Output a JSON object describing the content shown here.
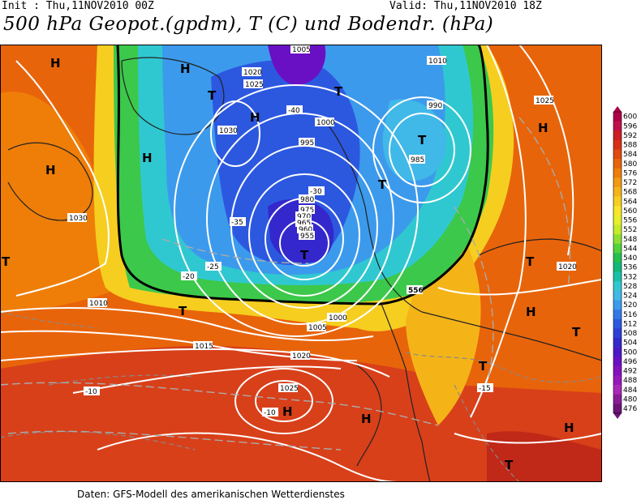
{
  "header": {
    "init": "Init : Thu,11NOV2010 00Z",
    "valid": "Valid: Thu,11NOV2010 18Z",
    "title": "500 hPa Geopot.(gpdm), T (C) und Bodendr. (hPa)"
  },
  "footer": "Daten: GFS-Modell des amerikanischen Wetterdienstes",
  "legend": {
    "levels": [
      "600",
      "596",
      "592",
      "588",
      "584",
      "580",
      "576",
      "572",
      "568",
      "564",
      "560",
      "556",
      "552",
      "548",
      "544",
      "540",
      "536",
      "532",
      "528",
      "524",
      "520",
      "516",
      "512",
      "508",
      "504",
      "500",
      "496",
      "492",
      "488",
      "484",
      "480",
      "476"
    ],
    "colors": [
      "#b0004a",
      "#c0104a",
      "#cc1e20",
      "#d83018",
      "#e04a10",
      "#e86408",
      "#ee7e08",
      "#f29a10",
      "#f4b418",
      "#f6ce20",
      "#f8e628",
      "#e6f028",
      "#c4ec28",
      "#8ee030",
      "#52d23c",
      "#22c050",
      "#10b87a",
      "#18c0a8",
      "#30c8d0",
      "#40b8e8",
      "#3c9aec",
      "#3478e8",
      "#2c58e0",
      "#2c40d8",
      "#3428cc",
      "#4c18c8",
      "#6a10c4",
      "#8410c0",
      "#9818bc",
      "#ac28b8",
      "#8a1c96",
      "#6c1478"
    ]
  },
  "map": {
    "pressure_labels": [
      "1000",
      "1005",
      "1010",
      "1015",
      "1020",
      "1025",
      "1030",
      "995",
      "990",
      "985",
      "980",
      "975",
      "970",
      "965",
      "960",
      "955"
    ],
    "temp_labels": [
      "-10",
      "-15",
      "-20",
      "-25",
      "-30",
      "-35",
      "-40"
    ],
    "high_symbol": "H",
    "low_symbol": "T",
    "label_556": "556"
  }
}
